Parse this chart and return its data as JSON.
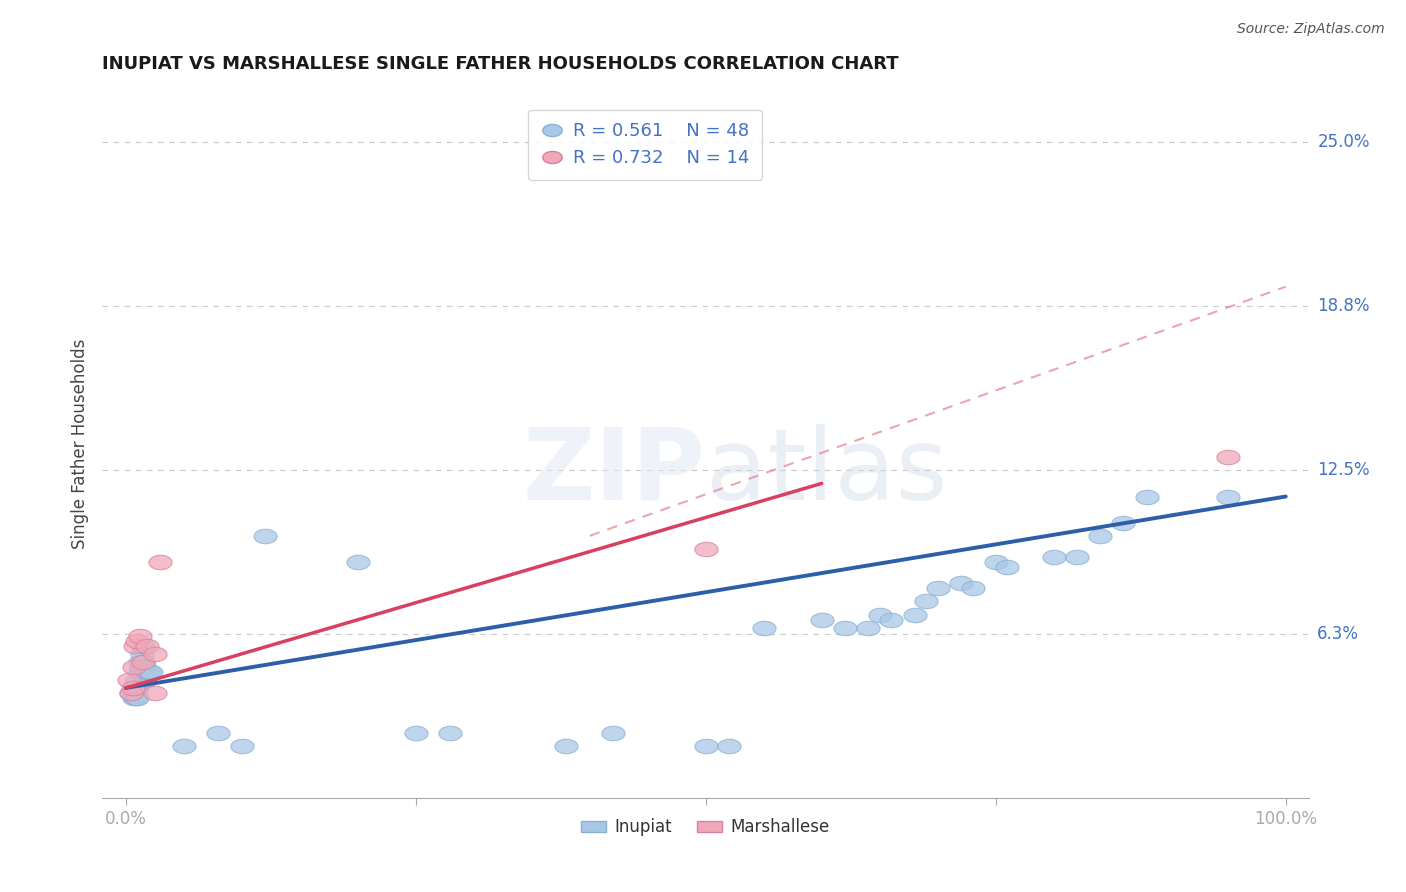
{
  "title": "INUPIAT VS MARSHALLESE SINGLE FATHER HOUSEHOLDS CORRELATION CHART",
  "source": "Source: ZipAtlas.com",
  "ylabel": "Single Father Households",
  "y_ticks": [
    0.0,
    0.0625,
    0.125,
    0.1875,
    0.25
  ],
  "y_tick_labels": [
    "",
    "6.3%",
    "12.5%",
    "18.8%",
    "25.0%"
  ],
  "legend_inupiat_R": "R = 0.561",
  "legend_inupiat_N": "N = 48",
  "legend_marshallese_R": "R = 0.732",
  "legend_marshallese_N": "N = 14",
  "inupiat_color": "#a8c8e8",
  "marshallese_color": "#f0a8b8",
  "inupiat_line_color": "#2c5fa8",
  "marshallese_line_color": "#d84060",
  "dashed_line_color": "#e08090",
  "background_color": "#ffffff",
  "inupiat_x": [
    0.005,
    0.007,
    0.008,
    0.009,
    0.01,
    0.01,
    0.01,
    0.012,
    0.012,
    0.013,
    0.014,
    0.015,
    0.015,
    0.016,
    0.017,
    0.018,
    0.02,
    0.022,
    0.05,
    0.08,
    0.1,
    0.12,
    0.2,
    0.25,
    0.28,
    0.38,
    0.42,
    0.5,
    0.52,
    0.55,
    0.6,
    0.62,
    0.64,
    0.65,
    0.66,
    0.68,
    0.69,
    0.7,
    0.72,
    0.73,
    0.75,
    0.76,
    0.8,
    0.82,
    0.84,
    0.86,
    0.88,
    0.95
  ],
  "inupiat_y": [
    0.04,
    0.038,
    0.042,
    0.038,
    0.038,
    0.042,
    0.045,
    0.048,
    0.052,
    0.05,
    0.055,
    0.058,
    0.052,
    0.05,
    0.045,
    0.048,
    0.048,
    0.048,
    0.02,
    0.025,
    0.02,
    0.1,
    0.09,
    0.025,
    0.025,
    0.02,
    0.025,
    0.02,
    0.02,
    0.065,
    0.068,
    0.065,
    0.065,
    0.07,
    0.068,
    0.07,
    0.075,
    0.08,
    0.082,
    0.08,
    0.09,
    0.088,
    0.092,
    0.092,
    0.1,
    0.105,
    0.115,
    0.115
  ],
  "marshallese_x": [
    0.003,
    0.005,
    0.006,
    0.007,
    0.008,
    0.01,
    0.012,
    0.015,
    0.018,
    0.025,
    0.025,
    0.03,
    0.5,
    0.95
  ],
  "marshallese_y": [
    0.045,
    0.04,
    0.042,
    0.05,
    0.058,
    0.06,
    0.062,
    0.052,
    0.058,
    0.04,
    0.055,
    0.09,
    0.095,
    0.13
  ],
  "xlim": [
    -0.02,
    1.02
  ],
  "ylim": [
    0.0,
    0.27
  ],
  "inupiat_line_x0": 0.0,
  "inupiat_line_x1": 1.0,
  "inupiat_line_y0": 0.042,
  "inupiat_line_y1": 0.115,
  "marshallese_line_x0": 0.0,
  "marshallese_line_x1": 0.6,
  "marshallese_line_y0": 0.042,
  "marshallese_line_y1": 0.12,
  "dashed_line_x0": 0.4,
  "dashed_line_x1": 1.0,
  "dashed_line_y0": 0.1,
  "dashed_line_y1": 0.195
}
